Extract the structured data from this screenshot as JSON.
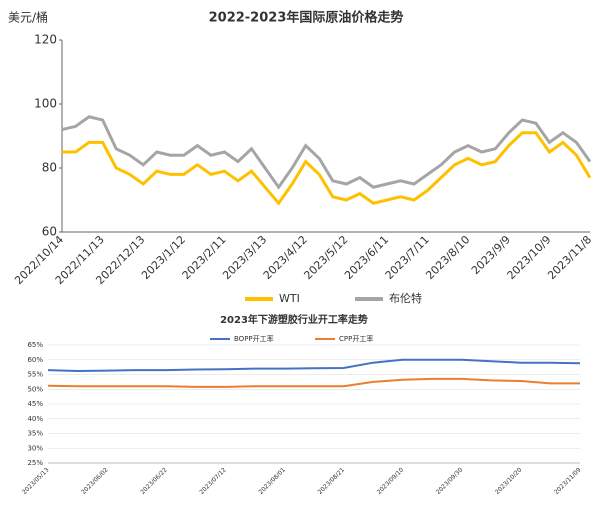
{
  "chart_data": [
    {
      "type": "line",
      "title": "2022-2023年国际原油价格走势",
      "y_label": "美元/桶",
      "categories": [
        "2022/10/14",
        null,
        null,
        "2022/11/13",
        null,
        null,
        "2022/12/13",
        null,
        null,
        "2023/1/12",
        null,
        null,
        "2023/2/11",
        null,
        null,
        "2023/3/13",
        null,
        null,
        "2023/4/12",
        null,
        null,
        "2023/5/12",
        null,
        null,
        "2023/6/11",
        null,
        null,
        "2023/7/11",
        null,
        null,
        "2023/8/10",
        null,
        null,
        "2023/9/9",
        null,
        null,
        "2023/10/9",
        null,
        null,
        "2023/11/8"
      ],
      "series": [
        {
          "name": "WTI",
          "color": "#ffc000",
          "values": [
            85,
            85,
            88,
            88,
            80,
            78,
            75,
            79,
            78,
            78,
            81,
            78,
            79,
            76,
            79,
            74,
            69,
            75,
            82,
            78,
            71,
            70,
            72,
            69,
            70,
            71,
            70,
            73,
            77,
            81,
            83,
            81,
            82,
            87,
            91,
            91,
            85,
            88,
            84,
            77
          ]
        },
        {
          "name": "布伦特",
          "color": "#a5a5a5",
          "values": [
            92,
            93,
            96,
            95,
            86,
            84,
            81,
            85,
            84,
            84,
            87,
            84,
            85,
            82,
            86,
            80,
            74,
            80,
            87,
            83,
            76,
            75,
            77,
            74,
            75,
            76,
            75,
            78,
            81,
            85,
            87,
            85,
            86,
            91,
            95,
            94,
            88,
            91,
            88,
            82
          ]
        }
      ],
      "ylim": [
        60,
        120
      ],
      "yticks": [
        60,
        80,
        100,
        120
      ],
      "grid": false,
      "legend": "bottom"
    },
    {
      "type": "line",
      "title": "2023年下游塑胶行业开工率走势",
      "categories": [
        "2023/05/13",
        null,
        "2023/06/02",
        null,
        "2023/06/22",
        null,
        "2023/07/12",
        null,
        "2023/08/01",
        null,
        "2023/08/21",
        null,
        "2023/09/10",
        null,
        "2023/09/30",
        null,
        "2023/10/20",
        null,
        "2023/11/09"
      ],
      "series": [
        {
          "name": "BOPP开工率",
          "color": "#4472c4",
          "values": [
            56.5,
            56.2,
            56.3,
            56.5,
            56.5,
            56.7,
            56.8,
            57,
            57,
            57.1,
            57.2,
            59,
            60,
            60,
            60,
            59.5,
            59,
            59,
            58.8
          ]
        },
        {
          "name": "CPP开工率",
          "color": "#ed7d31",
          "values": [
            51.2,
            51,
            51,
            51,
            51,
            50.8,
            50.8,
            51,
            51,
            51,
            51,
            52.5,
            53.2,
            53.5,
            53.5,
            53,
            52.8,
            52,
            52
          ]
        }
      ],
      "ylim": [
        25,
        65
      ],
      "yticks": [
        {
          "value": 25,
          "label": "25%"
        },
        {
          "value": 30,
          "label": "30%"
        },
        {
          "value": 35,
          "label": "35%"
        },
        {
          "value": 40,
          "label": "40%"
        },
        {
          "value": 45,
          "label": "45%"
        },
        {
          "value": 50,
          "label": "50%"
        },
        {
          "value": 55,
          "label": "55%"
        },
        {
          "value": 60,
          "label": "60%"
        },
        {
          "value": 65,
          "label": "65%"
        }
      ],
      "grid": true,
      "legend": "top"
    }
  ]
}
